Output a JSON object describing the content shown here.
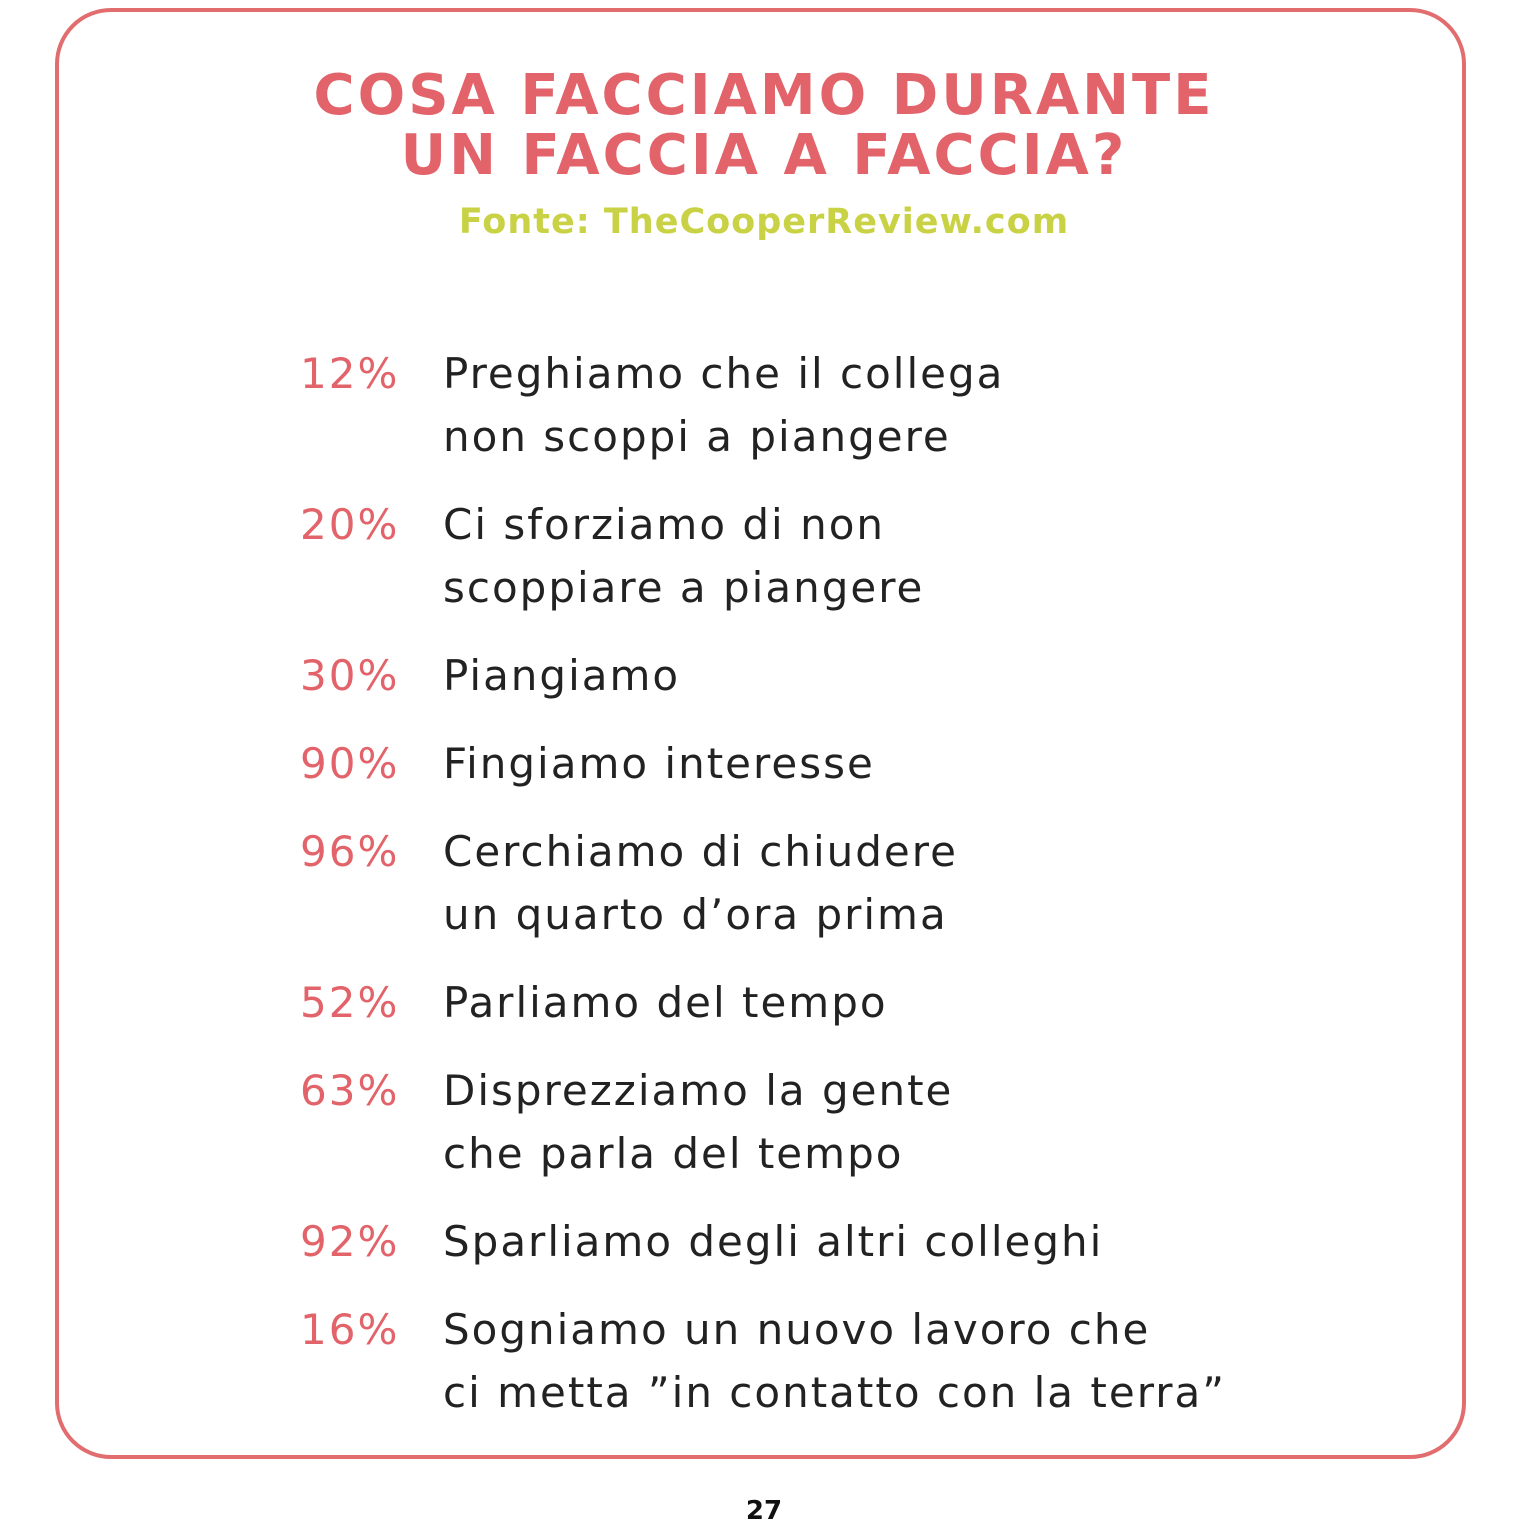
{
  "header": {
    "title": [
      "COSA FACCIAMO DURANTE",
      "UN FACCIA A FACCIA?"
    ],
    "source": "Fonte: TheCooperReview.com"
  },
  "items": [
    {
      "percent": "12%",
      "lines": [
        "Preghiamo che il collega",
        "non scoppi a piangere"
      ]
    },
    {
      "percent": "20%",
      "lines": [
        "Ci sforziamo di non",
        "scoppiare a piangere"
      ]
    },
    {
      "percent": "30%",
      "lines": [
        "Piangiamo"
      ]
    },
    {
      "percent": "90%",
      "lines": [
        "Fingiamo interesse"
      ]
    },
    {
      "percent": "96%",
      "lines": [
        "Cerchiamo di chiudere",
        "un quarto d’ora prima"
      ]
    },
    {
      "percent": "52%",
      "lines": [
        "Parliamo del tempo"
      ]
    },
    {
      "percent": "63%",
      "lines": [
        "Disprezziamo la gente",
        "che parla del tempo"
      ]
    },
    {
      "percent": "92%",
      "lines": [
        "Sparliamo degli altri colleghi"
      ]
    },
    {
      "percent": "16%",
      "lines": [
        "Sogniamo un nuovo lavoro che",
        "ci metta ”in contatto con la terra”"
      ]
    }
  ],
  "page_number": "27"
}
